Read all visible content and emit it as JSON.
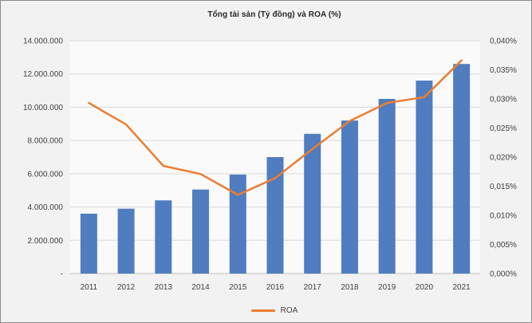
{
  "window": {
    "background_color": "#f2f2f2",
    "plot_background_color": "#fafafa",
    "border_color": "#8c8c8c"
  },
  "chart_data": {
    "type": "bar",
    "combo": "bar+line",
    "title": "Tổng tài sản (Tỷ đồng) và ROA (%)",
    "categories": [
      "2011",
      "2012",
      "2013",
      "2014",
      "2015",
      "2016",
      "2017",
      "2018",
      "2019",
      "2020",
      "2021"
    ],
    "series": [
      {
        "name": "Tổng tài sản (Tỷ đồng)",
        "type": "bar",
        "axis": "left",
        "color": "#4f7dbf",
        "values": [
          3600000,
          3900000,
          4400000,
          5050000,
          5950000,
          7000000,
          8400000,
          9200000,
          10500000,
          11600000,
          12600000
        ]
      },
      {
        "name": "ROA",
        "type": "line",
        "axis": "right",
        "color": "#ed7d31",
        "values": [
          0.0293,
          0.0256,
          0.0185,
          0.0171,
          0.0135,
          0.0164,
          0.0214,
          0.0262,
          0.0293,
          0.0303,
          0.0366
        ]
      }
    ],
    "y_axis_left": {
      "min": 0,
      "max": 14000000,
      "step": 2000000,
      "tick_labels": [
        "14.000.000",
        "12.000.000",
        "10.000.000",
        "8.000.000",
        "6.000.000",
        "4.000.000",
        "2.000.000",
        "-"
      ]
    },
    "y_axis_right": {
      "min": 0,
      "max": 0.04,
      "step": 0.005,
      "unit": "%",
      "tick_labels": [
        "0,040%",
        "0,035%",
        "0,030%",
        "0,025%",
        "0,020%",
        "0,015%",
        "0,010%",
        "0,005%",
        "0,000%"
      ]
    },
    "legend": {
      "position": "bottom",
      "entries": [
        "ROA"
      ],
      "swatch_color": "#ed7d31"
    },
    "grid": true,
    "gridline_color": "#d9d9d9",
    "axis_line_color": "#bfbfbf",
    "text_color": "#404040"
  }
}
